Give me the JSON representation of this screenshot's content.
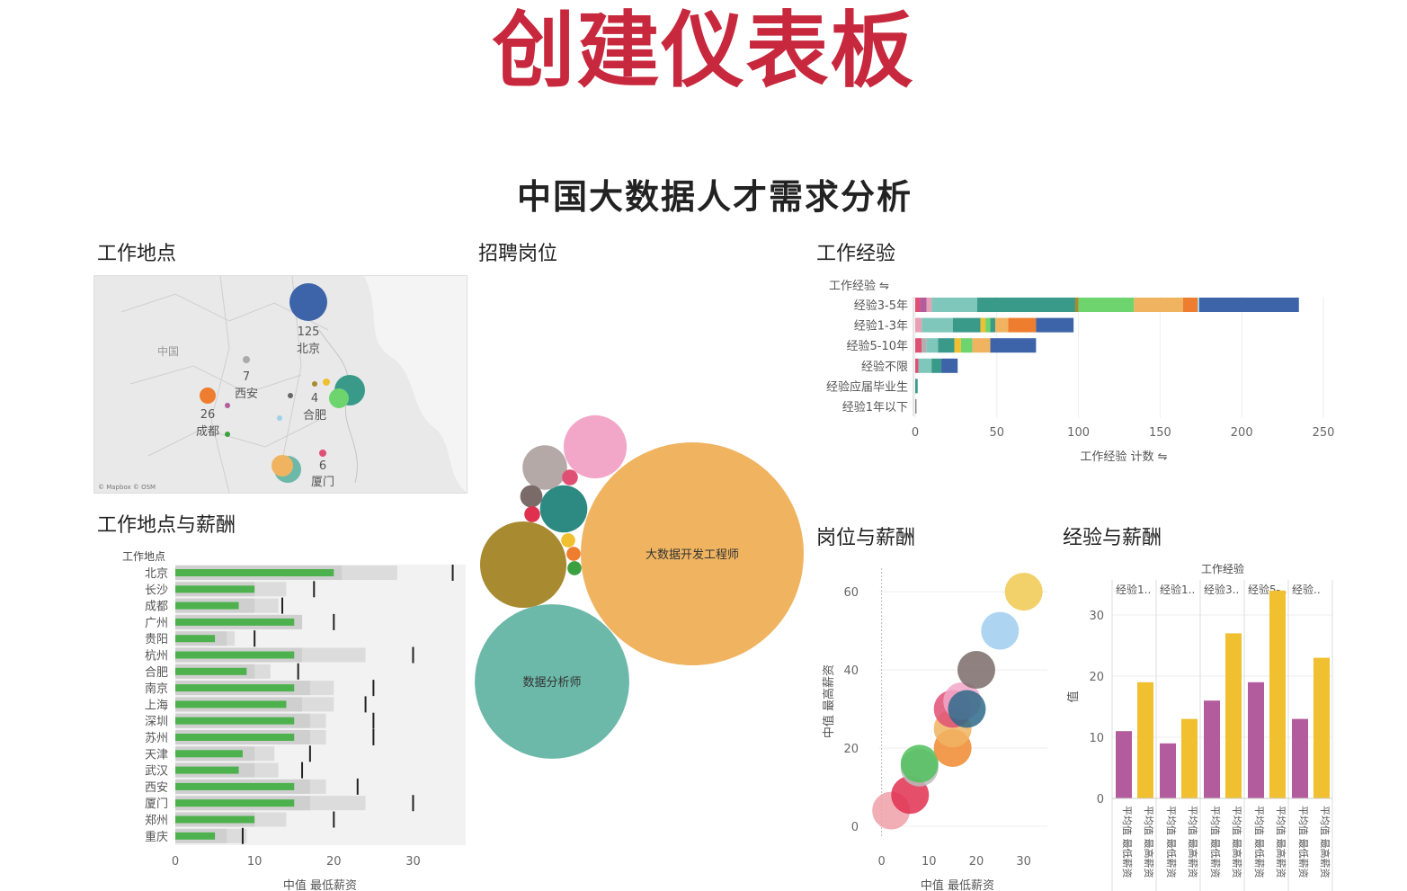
{
  "slide_title": "创建仪表板",
  "dashboard_title": "中国大数据人才需求分析",
  "colors": {
    "title_red": "#c8283d",
    "bar_green": "#4db14d",
    "bubble_orange": "#f0b461",
    "bubble_teal": "#6cb8a9",
    "purple": "#b25c9e",
    "yellow": "#f0c030"
  },
  "sections": {
    "location": "工作地点",
    "positions": "招聘岗位",
    "experience": "工作经验",
    "location_salary": "工作地点与薪酬",
    "position_salary": "岗位与薪酬",
    "experience_salary": "经验与薪酬"
  },
  "map": {
    "attribution": "© Mapbox © OSM",
    "region_label": "中国",
    "points": [
      {
        "city": "北京",
        "value": "125",
        "color": "#3d64a8"
      },
      {
        "city": "西安",
        "value": "7",
        "color": "#aaaaaa"
      },
      {
        "city": "合肥",
        "value": "4",
        "color": "#3a9a8a"
      },
      {
        "city": "成都",
        "value": "26",
        "color": "#ee7d2f"
      },
      {
        "city": "厦门",
        "value": "6",
        "color": "#e05075"
      }
    ]
  },
  "chart_data": [
    {
      "id": "experience",
      "type": "bar",
      "orientation": "horizontal-stacked",
      "title": "工作经验",
      "header_label": "工作经验",
      "xlabel": "工作经验 计数",
      "xlim": [
        0,
        250
      ],
      "xticks": [
        0,
        50,
        100,
        150,
        200,
        250
      ],
      "categories": [
        "经验3-5年",
        "经验1-3年",
        "经验5-10年",
        "经验不限",
        "经验应届毕业生",
        "经验1年以下"
      ],
      "segments": [
        [
          {
            "v": 3,
            "c": "#e05075"
          },
          {
            "v": 4,
            "c": "#b25c9e"
          },
          {
            "v": 3,
            "c": "#e8a0b4"
          },
          {
            "v": 28,
            "c": "#7fc6bb"
          },
          {
            "v": 60,
            "c": "#3a9a8a"
          },
          {
            "v": 2,
            "c": "#a88a30"
          },
          {
            "v": 34,
            "c": "#6ed46e"
          },
          {
            "v": 30,
            "c": "#f0b461"
          },
          {
            "v": 9,
            "c": "#ee7d2f"
          },
          {
            "v": 1,
            "c": "#9fd1ea"
          },
          {
            "v": 61,
            "c": "#3d64a8"
          }
        ],
        [
          {
            "v": 4,
            "c": "#e8a0b4"
          },
          {
            "v": 19,
            "c": "#7fc6bb"
          },
          {
            "v": 17,
            "c": "#3a9a8a"
          },
          {
            "v": 3,
            "c": "#f0c030"
          },
          {
            "v": 3,
            "c": "#6ed46e"
          },
          {
            "v": 3,
            "c": "#3a9a8a"
          },
          {
            "v": 8,
            "c": "#f0b461"
          },
          {
            "v": 17,
            "c": "#ee7d2f"
          },
          {
            "v": 23,
            "c": "#3d64a8"
          }
        ],
        [
          {
            "v": 4,
            "c": "#e05075"
          },
          {
            "v": 3,
            "c": "#b0b0b0"
          },
          {
            "v": 7,
            "c": "#7fc6bb"
          },
          {
            "v": 10,
            "c": "#3a9a8a"
          },
          {
            "v": 4,
            "c": "#f0c030"
          },
          {
            "v": 7,
            "c": "#6ed46e"
          },
          {
            "v": 11,
            "c": "#f0b461"
          },
          {
            "v": 28,
            "c": "#3d64a8"
          }
        ],
        [
          {
            "v": 2,
            "c": "#e05075"
          },
          {
            "v": 8,
            "c": "#7fc6bb"
          },
          {
            "v": 6,
            "c": "#3a9a8a"
          },
          {
            "v": 10,
            "c": "#3d64a8"
          }
        ],
        [
          {
            "v": 1.5,
            "c": "#3a9a8a"
          }
        ],
        [
          {
            "v": 0.8,
            "c": "#888888"
          }
        ]
      ]
    },
    {
      "id": "positions",
      "type": "bubble",
      "title": "招聘岗位",
      "items": [
        {
          "label": "大数据开发工程师",
          "size": 100,
          "color": "#f0b461"
        },
        {
          "label": "数据分析师",
          "size": 48,
          "color": "#6cb8a9"
        },
        {
          "label": "",
          "size": 15,
          "color": "#a88a30"
        },
        {
          "label": "",
          "size": 8,
          "color": "#f2a7c8"
        },
        {
          "label": "",
          "size": 4.5,
          "color": "#2c8a82"
        },
        {
          "label": "",
          "size": 4,
          "color": "#b5a9a7"
        },
        {
          "label": "",
          "size": 1,
          "color": "#7a6b69"
        },
        {
          "label": "",
          "size": 0.5,
          "color": "#e05075"
        },
        {
          "label": "",
          "size": 0.5,
          "color": "#e03050"
        },
        {
          "label": "",
          "size": 0.4,
          "color": "#f0c030"
        },
        {
          "label": "",
          "size": 0.4,
          "color": "#ee7d2f"
        },
        {
          "label": "",
          "size": 0.4,
          "color": "#3aa040"
        }
      ]
    },
    {
      "id": "location_salary",
      "type": "bar",
      "orientation": "horizontal-bullet",
      "title": "工作地点与薪酬",
      "header_label": "工作地点",
      "xlabel": "中值 最低薪资",
      "xlim": [
        0,
        38
      ],
      "xticks": [
        0,
        10,
        20,
        30
      ],
      "categories": [
        "北京",
        "长沙",
        "成都",
        "广州",
        "贵阳",
        "杭州",
        "合肥",
        "南京",
        "上海",
        "深圳",
        "苏州",
        "天津",
        "武汉",
        "西安",
        "厦门",
        "郑州",
        "重庆"
      ],
      "values": [
        20,
        10,
        8,
        15,
        5,
        15,
        9,
        15,
        14,
        15,
        15,
        8.5,
        8,
        15,
        15,
        10,
        5
      ],
      "band1": [
        21,
        10,
        10,
        16,
        6.5,
        16,
        10,
        17,
        16,
        17,
        17,
        10,
        10,
        17,
        17,
        10,
        6.5
      ],
      "band2": [
        28,
        14,
        13,
        16,
        7.5,
        24,
        12,
        20,
        20,
        19,
        19,
        12.5,
        13,
        19,
        24,
        14,
        9
      ],
      "targets": [
        35,
        17.5,
        13.5,
        20,
        10,
        30,
        15.5,
        25,
        24,
        25,
        25,
        17,
        16,
        23,
        30,
        20,
        8.5
      ]
    },
    {
      "id": "position_salary",
      "type": "scatter",
      "title": "岗位与薪酬",
      "xlabel": "中值 最低薪资",
      "ylabel": "中值 最高薪资",
      "xlim": [
        -0.5,
        35
      ],
      "ylim": [
        -3,
        66
      ],
      "xticks": [
        0,
        10,
        20,
        30
      ],
      "yticks": [
        0,
        20,
        40,
        60
      ],
      "points": [
        {
          "x": 2,
          "y": 4,
          "c": "#f0a0a8"
        },
        {
          "x": 6,
          "y": 8,
          "c": "#e03050"
        },
        {
          "x": 8,
          "y": 15,
          "c": "#bbbbbb"
        },
        {
          "x": 8,
          "y": 16,
          "c": "#4fbf5c"
        },
        {
          "x": 15,
          "y": 20,
          "c": "#f08a30"
        },
        {
          "x": 15,
          "y": 25,
          "c": "#f0b461"
        },
        {
          "x": 15,
          "y": 30,
          "c": "#e05075"
        },
        {
          "x": 17,
          "y": 32,
          "c": "#f2a7c8"
        },
        {
          "x": 18,
          "y": 30,
          "c": "#2e6a8a"
        },
        {
          "x": 20,
          "y": 40,
          "c": "#7a6b69"
        },
        {
          "x": 25,
          "y": 50,
          "c": "#9fcdee"
        },
        {
          "x": 30,
          "y": 60,
          "c": "#f0c850"
        }
      ]
    },
    {
      "id": "experience_salary",
      "type": "bar",
      "orientation": "vertical-grouped",
      "title": "经验与薪酬",
      "header_label": "工作经验",
      "ylabel": "值",
      "ylim": [
        0,
        35
      ],
      "yticks": [
        0,
        10,
        20,
        30
      ],
      "groups": [
        "经验1..",
        "经验1..",
        "经验3..",
        "经验5-..",
        "经验.."
      ],
      "series": [
        {
          "name": "平均值 最低薪资",
          "color": "#b25c9e",
          "values": [
            11,
            9,
            16,
            19,
            13
          ]
        },
        {
          "name": "平均值 最高薪资",
          "color": "#f0c030",
          "values": [
            19,
            13,
            27,
            34,
            23
          ]
        }
      ]
    }
  ]
}
